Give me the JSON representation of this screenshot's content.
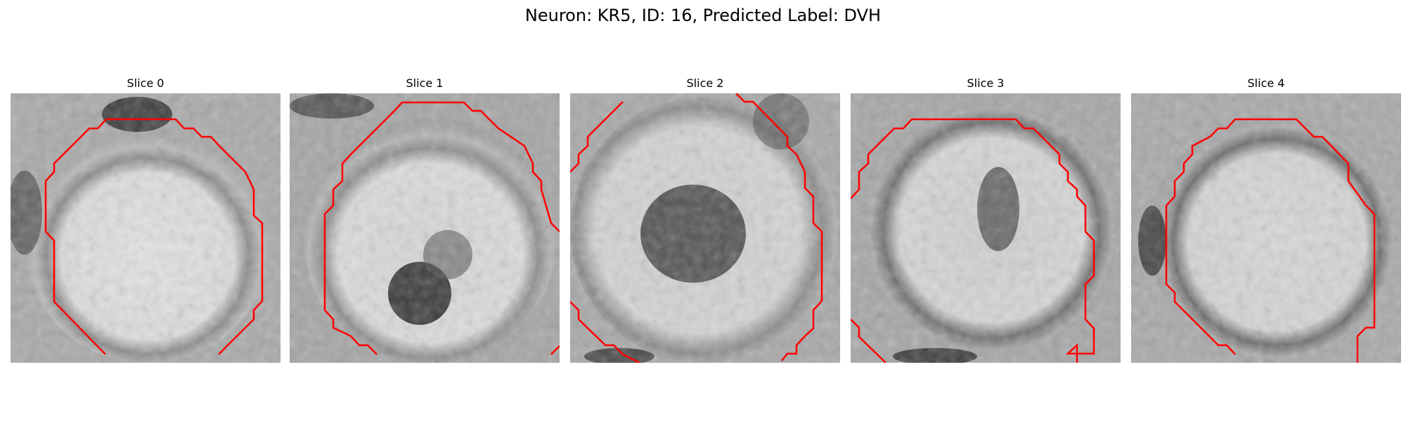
{
  "figure": {
    "title": "Neuron: KR5, ID: 16, Predicted Label: DVH"
  },
  "contour_color": "#ff0000",
  "panels": [
    {
      "title": "Slice 0"
    },
    {
      "title": "Slice 1"
    },
    {
      "title": "Slice 2"
    },
    {
      "title": "Slice 3"
    },
    {
      "title": "Slice 4"
    }
  ]
}
